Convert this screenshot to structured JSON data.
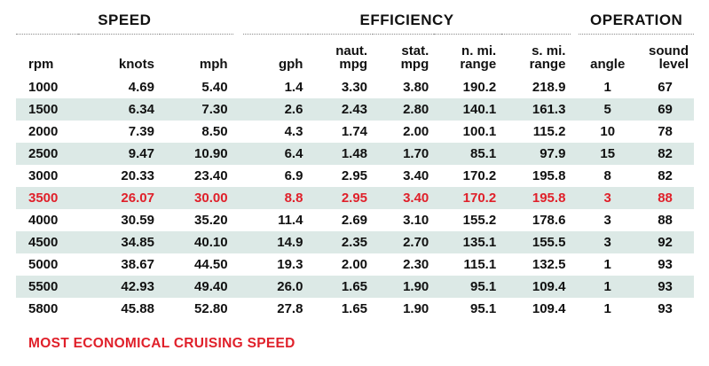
{
  "groups": {
    "speed": "SPEED",
    "efficiency": "EFFICIENCY",
    "operation": "OPERATION"
  },
  "columns": {
    "rpm": "rpm",
    "knots": "knots",
    "mph": "mph",
    "gph": "gph",
    "naut_mpg_1": "naut.",
    "naut_mpg_2": "mpg",
    "stat_mpg_1": "stat.",
    "stat_mpg_2": "mpg",
    "nmi_range_1": "n. mi.",
    "nmi_range_2": "range",
    "smi_range_1": "s. mi.",
    "smi_range_2": "range",
    "angle": "angle",
    "sound_level_1": "sound",
    "sound_level_2": "level"
  },
  "rows": [
    {
      "rpm": "1000",
      "knots": "4.69",
      "mph": "5.40",
      "gph": "1.4",
      "naut_mpg": "3.30",
      "stat_mpg": "3.80",
      "nmi_range": "190.2",
      "smi_range": "218.9",
      "angle": "1",
      "sound_level": "67"
    },
    {
      "rpm": "1500",
      "knots": "6.34",
      "mph": "7.30",
      "gph": "2.6",
      "naut_mpg": "2.43",
      "stat_mpg": "2.80",
      "nmi_range": "140.1",
      "smi_range": "161.3",
      "angle": "5",
      "sound_level": "69"
    },
    {
      "rpm": "2000",
      "knots": "7.39",
      "mph": "8.50",
      "gph": "4.3",
      "naut_mpg": "1.74",
      "stat_mpg": "2.00",
      "nmi_range": "100.1",
      "smi_range": "115.2",
      "angle": "10",
      "sound_level": "78"
    },
    {
      "rpm": "2500",
      "knots": "9.47",
      "mph": "10.90",
      "gph": "6.4",
      "naut_mpg": "1.48",
      "stat_mpg": "1.70",
      "nmi_range": "85.1",
      "smi_range": "97.9",
      "angle": "15",
      "sound_level": "82"
    },
    {
      "rpm": "3000",
      "knots": "20.33",
      "mph": "23.40",
      "gph": "6.9",
      "naut_mpg": "2.95",
      "stat_mpg": "3.40",
      "nmi_range": "170.2",
      "smi_range": "195.8",
      "angle": "8",
      "sound_level": "82"
    },
    {
      "rpm": "3500",
      "knots": "26.07",
      "mph": "30.00",
      "gph": "8.8",
      "naut_mpg": "2.95",
      "stat_mpg": "3.40",
      "nmi_range": "170.2",
      "smi_range": "195.8",
      "angle": "3",
      "sound_level": "88"
    },
    {
      "rpm": "4000",
      "knots": "30.59",
      "mph": "35.20",
      "gph": "11.4",
      "naut_mpg": "2.69",
      "stat_mpg": "3.10",
      "nmi_range": "155.2",
      "smi_range": "178.6",
      "angle": "3",
      "sound_level": "88"
    },
    {
      "rpm": "4500",
      "knots": "34.85",
      "mph": "40.10",
      "gph": "14.9",
      "naut_mpg": "2.35",
      "stat_mpg": "2.70",
      "nmi_range": "135.1",
      "smi_range": "155.5",
      "angle": "3",
      "sound_level": "92"
    },
    {
      "rpm": "5000",
      "knots": "38.67",
      "mph": "44.50",
      "gph": "19.3",
      "naut_mpg": "2.00",
      "stat_mpg": "2.30",
      "nmi_range": "115.1",
      "smi_range": "132.5",
      "angle": "1",
      "sound_level": "93"
    },
    {
      "rpm": "5500",
      "knots": "42.93",
      "mph": "49.40",
      "gph": "26.0",
      "naut_mpg": "1.65",
      "stat_mpg": "1.90",
      "nmi_range": "95.1",
      "smi_range": "109.4",
      "angle": "1",
      "sound_level": "93"
    },
    {
      "rpm": "5800",
      "knots": "45.88",
      "mph": "52.80",
      "gph": "27.8",
      "naut_mpg": "1.65",
      "stat_mpg": "1.90",
      "nmi_range": "95.1",
      "smi_range": "109.4",
      "angle": "1",
      "sound_level": "93"
    }
  ],
  "footnote": "MOST ECONOMICAL CRUISING SPEED",
  "colors": {
    "highlight_red": "#e0202a",
    "row_shade": "#dce9e6",
    "text": "#111111"
  }
}
